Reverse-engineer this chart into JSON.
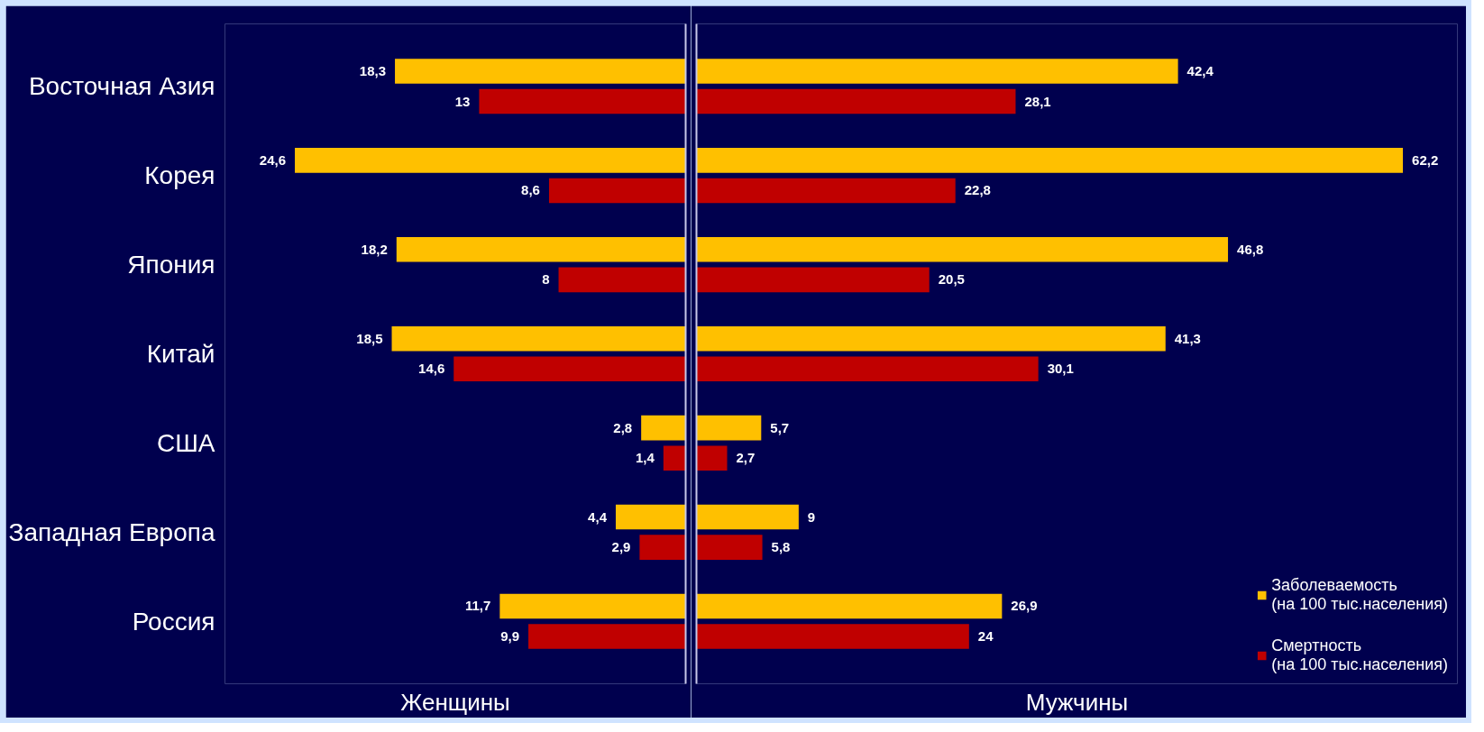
{
  "chart_data": [
    {
      "type": "bar",
      "orientation": "horizontal",
      "xlabel": "Женщины",
      "categories": [
        "Восточная Азия",
        "Корея",
        "Япония",
        "Китай",
        "США",
        "Западная Европа",
        "Россия"
      ],
      "xlim": [
        29,
        0
      ],
      "tick_labels": "y",
      "grid": false,
      "series": [
        {
          "color": "#ffc000",
          "values": [
            18.3,
            24.6,
            18.2,
            18.5,
            2.8,
            4.4,
            11.7
          ],
          "value_labels": [
            "18,3",
            "24,6",
            "18,2",
            "18,5",
            "2,8",
            "4,4",
            "11,7"
          ]
        },
        {
          "color": "#c00000",
          "values": [
            13,
            8.6,
            8,
            14.6,
            1.4,
            2.9,
            9.9
          ],
          "value_labels": [
            "13",
            "8,6",
            "8",
            "14,6",
            "1,4",
            "2,9",
            "9,9"
          ]
        }
      ]
    },
    {
      "type": "bar",
      "orientation": "horizontal",
      "xlabel": "Мужчины",
      "categories": [
        null,
        null,
        null,
        null,
        null,
        null,
        null
      ],
      "xlim": [
        0,
        67
      ],
      "tick_labels": false,
      "legend": "bottom right",
      "grid": false,
      "series": [
        {
          "name": "Заболеваемость\n(на 100 тыс.населения)",
          "color": "#ffc000",
          "values": [
            42.4,
            62.2,
            46.8,
            41.3,
            5.7,
            9,
            26.9
          ],
          "value_labels": [
            "42,4",
            "62,2",
            "46,8",
            "41,3",
            "5,7",
            "9",
            "26,9"
          ]
        },
        {
          "name": "Смертность\n(на 100 тыс.населения)",
          "color": "#c00000",
          "values": [
            28.1,
            22.8,
            20.5,
            30.1,
            2.7,
            5.8,
            24
          ],
          "value_labels": [
            "28,1",
            "22,8",
            "20,5",
            "30,1",
            "2,7",
            "5,8",
            "24"
          ]
        }
      ]
    }
  ]
}
